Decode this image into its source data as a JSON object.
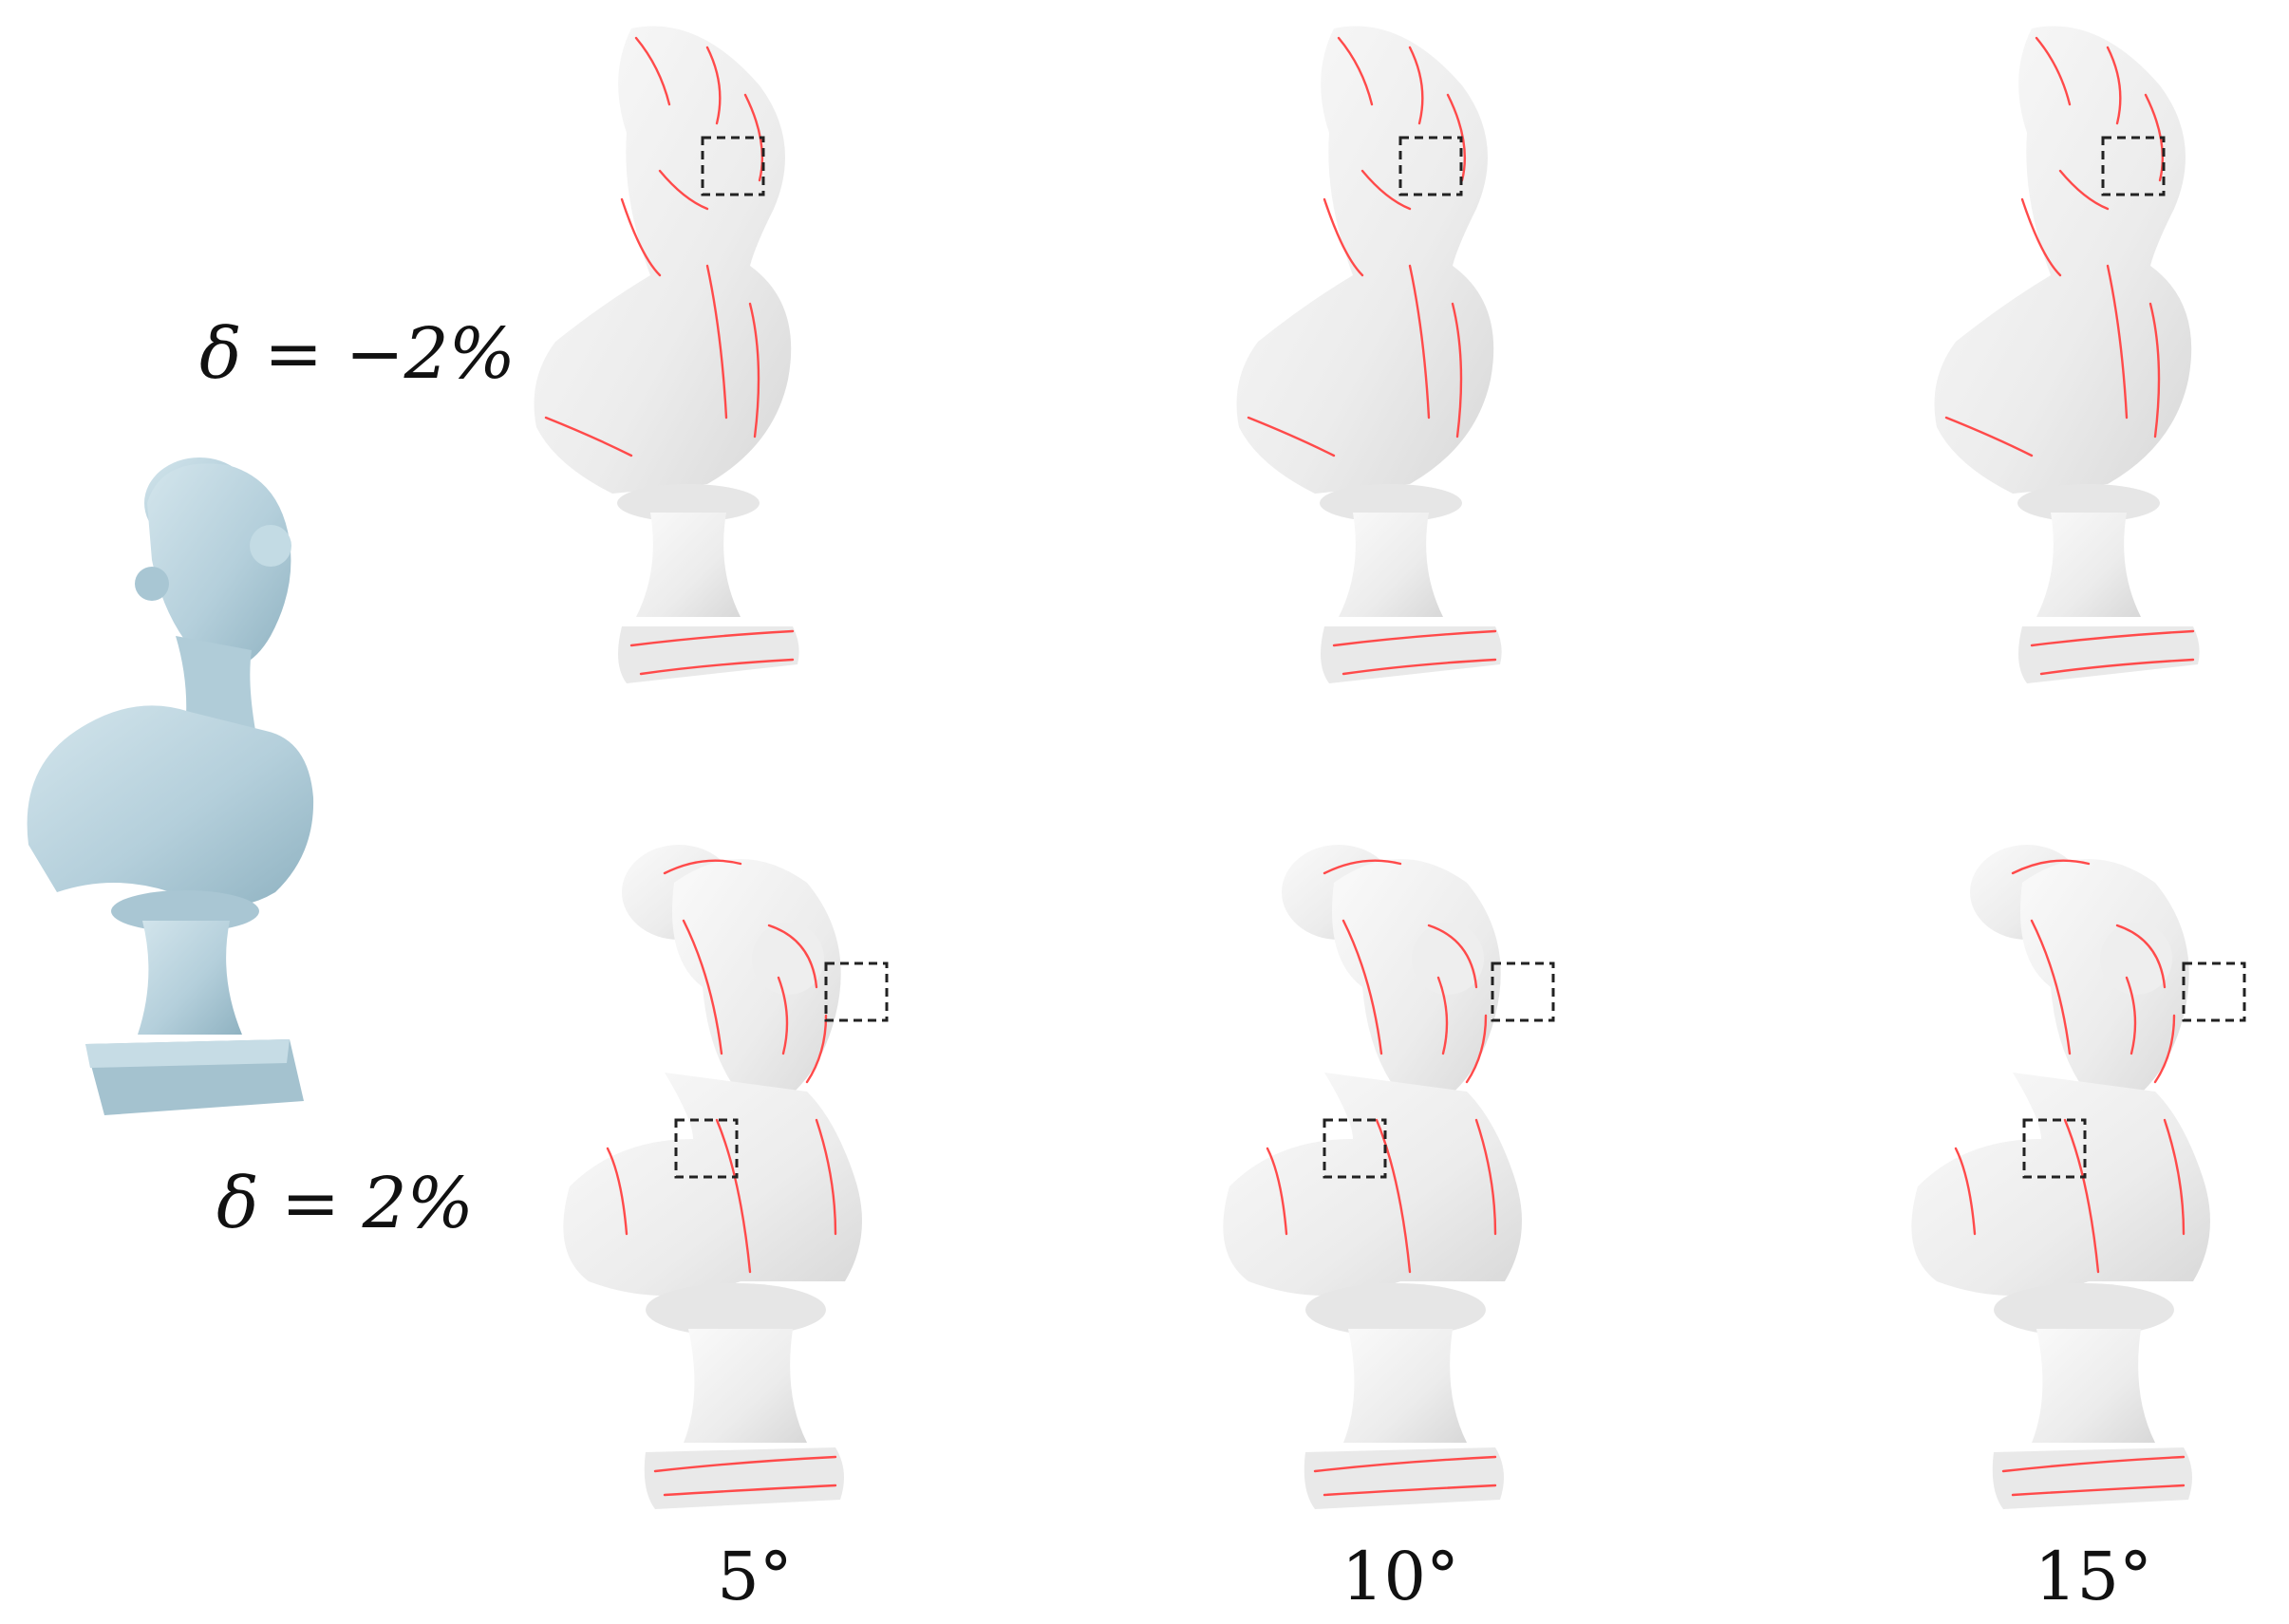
{
  "rows": [
    {
      "label": "δ = −2%"
    },
    {
      "label": "δ = 2%"
    }
  ],
  "columns": [
    {
      "label": "5°"
    },
    {
      "label": "10°"
    },
    {
      "label": "15°"
    }
  ],
  "colors": {
    "reference_model": "#b8d3de",
    "result_model": "#f1f1f1",
    "feature_lines": "#ff4a4a",
    "zoom_box": "#222222"
  }
}
